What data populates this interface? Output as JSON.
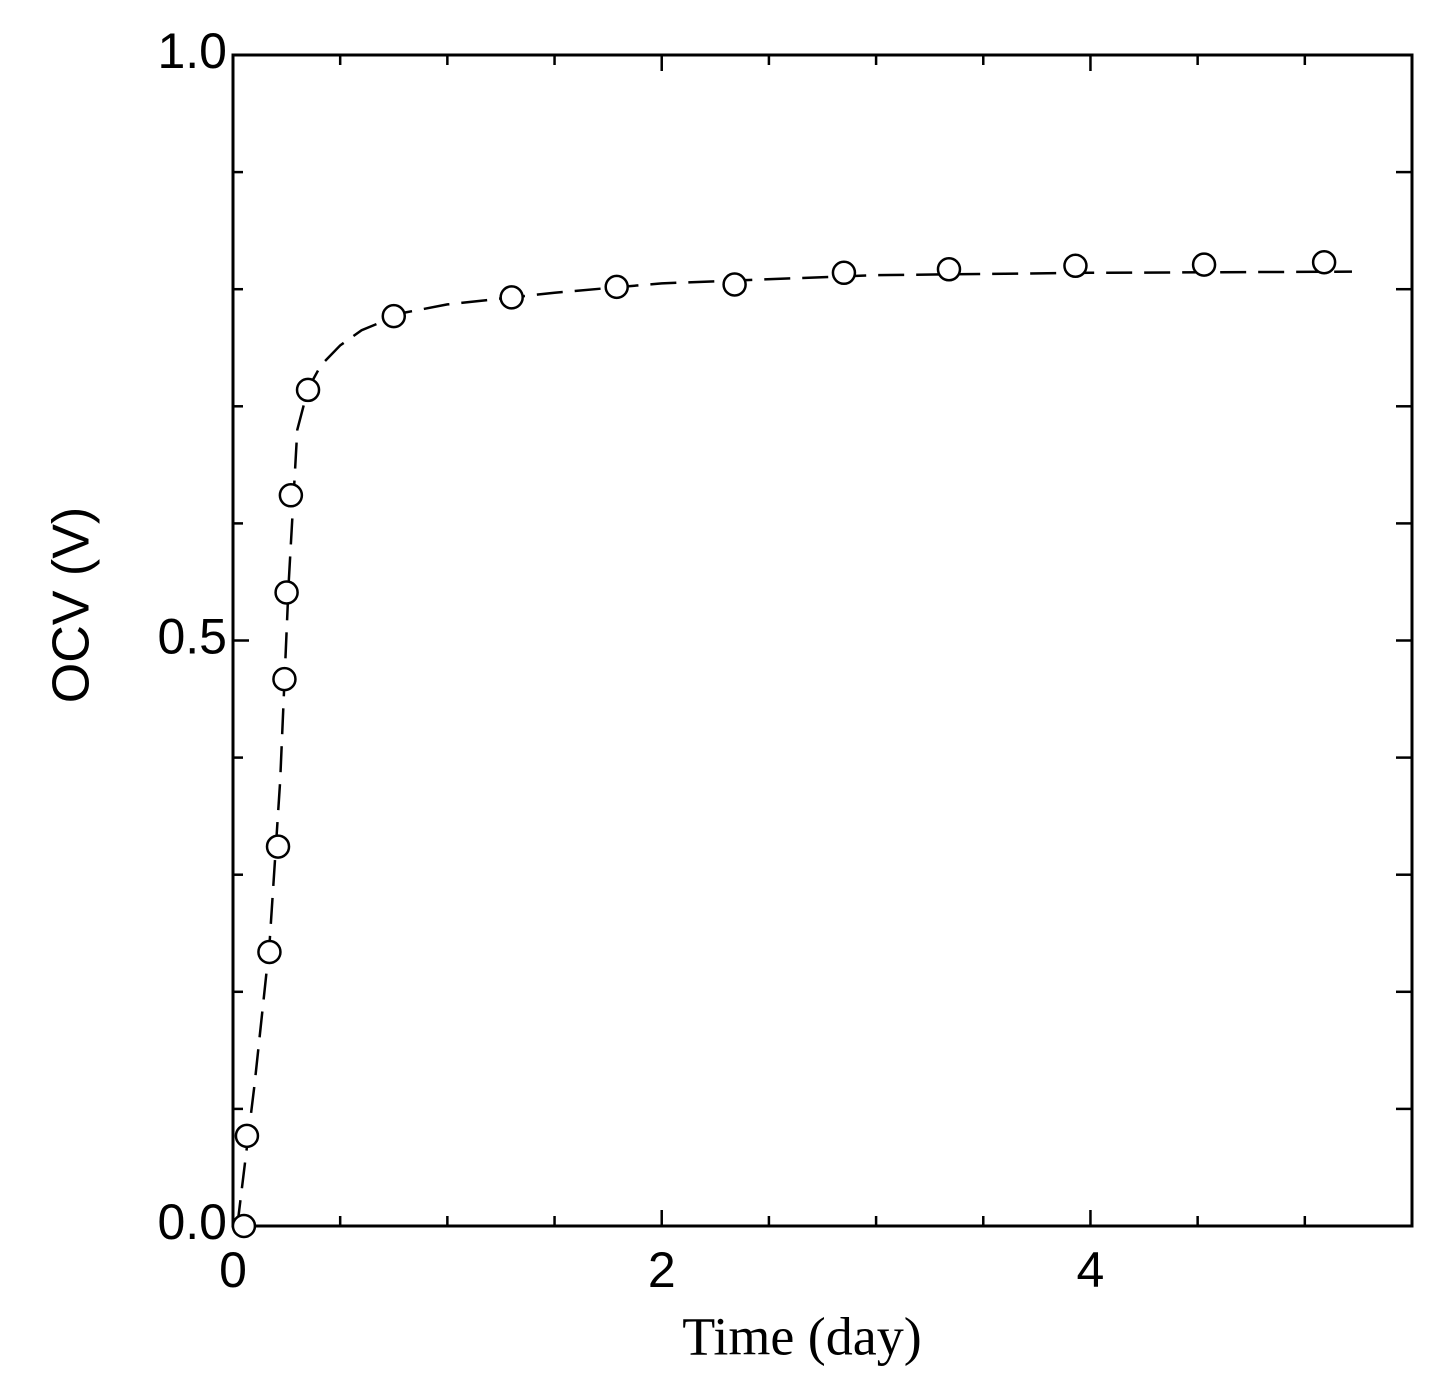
{
  "chart_data": {
    "type": "scatter",
    "xlabel": "Time  (day)",
    "ylabel": "OCV  (V)",
    "xlim": [
      0,
      5.5
    ],
    "ylim": [
      0,
      1.0
    ],
    "xticks": [
      0,
      2,
      4
    ],
    "yticks": [
      {
        "value": 0,
        "label": "0.0"
      },
      {
        "value": 0.5,
        "label": "0.5"
      },
      {
        "value": 1.0,
        "label": "1.0"
      }
    ],
    "xminor": [
      0.5,
      1,
      1.5,
      2.5,
      3,
      3.5,
      4.5,
      5
    ],
    "yminor": [
      0.1,
      0.2,
      0.3,
      0.4,
      0.6,
      0.7,
      0.8,
      0.9
    ],
    "series": [
      {
        "style": "marker",
        "color": "#000000",
        "x": [
          0.051,
          0.065,
          0.17,
          0.21,
          0.24,
          0.25,
          0.27,
          0.35,
          0.75,
          1.3,
          1.79,
          2.34,
          2.85,
          3.34,
          3.93,
          4.53,
          5.09
        ],
        "values": [
          0,
          0.077,
          0.234,
          0.324,
          0.467,
          0.541,
          0.624,
          0.714,
          0.777,
          0.793,
          0.802,
          0.804,
          0.814,
          0.817,
          0.82,
          0.821,
          0.823
        ]
      },
      {
        "style": "dashed",
        "color": "#000000",
        "x": [
          0.02,
          0.1,
          0.17,
          0.22,
          0.26,
          0.3,
          0.35,
          0.41,
          0.5,
          0.6,
          0.8,
          1.0,
          1.5,
          2,
          3,
          4,
          5.22
        ],
        "values": [
          0,
          0.12,
          0.24,
          0.38,
          0.55,
          0.68,
          0.715,
          0.735,
          0.752,
          0.765,
          0.78,
          0.787,
          0.797,
          0.805,
          0.812,
          0.814,
          0.815
        ]
      }
    ]
  }
}
